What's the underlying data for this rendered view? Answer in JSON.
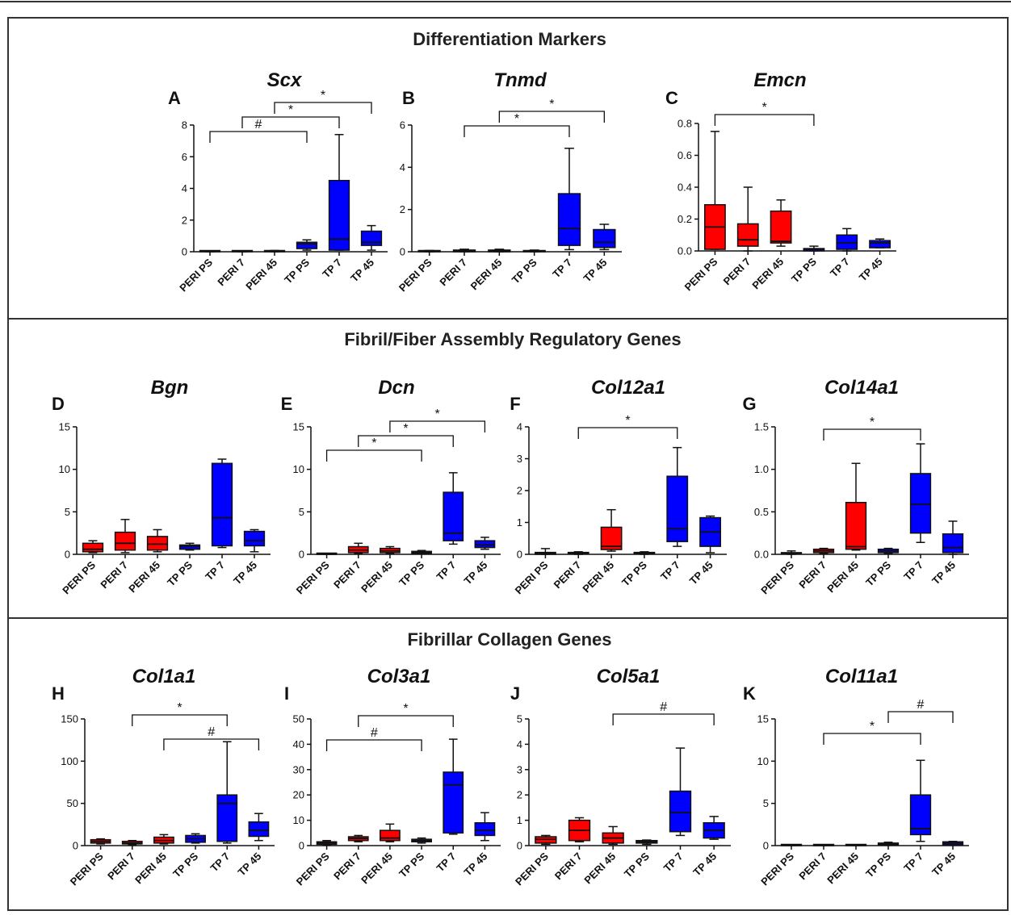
{
  "sections": [
    {
      "title": "Differentiation Markers"
    },
    {
      "title": "Fibril/Fiber Assembly Regulatory Genes"
    },
    {
      "title": "Fibrillar Collagen Genes"
    }
  ],
  "colors": {
    "peri": "#ff0000",
    "tp": "#0000ff",
    "frame": "#333333"
  },
  "chart_data": [
    {
      "type": "box",
      "letter": "A",
      "title": "Scx",
      "section": 0,
      "categories": [
        "PERI PS",
        "PERI 7",
        "PERI 45",
        "TP PS",
        "TP 7",
        "TP 45"
      ],
      "ylim": [
        0,
        8
      ],
      "yticks": [
        0,
        2,
        4,
        6,
        8
      ],
      "ytick_labels": [
        "0",
        "2",
        "4",
        "6",
        "8"
      ],
      "boxes": [
        {
          "min": 0.0,
          "q1": 0.0,
          "median": 0.02,
          "q3": 0.04,
          "max": 0.06
        },
        {
          "min": 0.0,
          "q1": 0.0,
          "median": 0.02,
          "q3": 0.04,
          "max": 0.06
        },
        {
          "min": 0.0,
          "q1": 0.0,
          "median": 0.02,
          "q3": 0.05,
          "max": 0.08
        },
        {
          "min": 0.1,
          "q1": 0.2,
          "median": 0.5,
          "q3": 0.6,
          "max": 0.75
        },
        {
          "min": 0.1,
          "q1": 0.1,
          "median": 0.8,
          "q3": 4.5,
          "max": 7.4
        },
        {
          "min": 0.1,
          "q1": 0.4,
          "median": 0.6,
          "q3": 1.3,
          "max": 1.65
        }
      ],
      "brackets": [
        {
          "from": 0,
          "to": 3,
          "label": "#",
          "level": 0
        },
        {
          "from": 1,
          "to": 4,
          "label": "*",
          "level": 1
        },
        {
          "from": 2,
          "to": 5,
          "label": "*",
          "level": 2
        }
      ]
    },
    {
      "type": "box",
      "letter": "B",
      "title": "Tnmd",
      "section": 0,
      "categories": [
        "PERI PS",
        "PERI 7",
        "PERI 45",
        "TP PS",
        "TP 7",
        "TP 45"
      ],
      "ylim": [
        0,
        6
      ],
      "yticks": [
        0,
        2,
        4,
        6
      ],
      "ytick_labels": [
        "0",
        "2",
        "4",
        "6"
      ],
      "boxes": [
        {
          "min": 0.0,
          "q1": 0.0,
          "median": 0.02,
          "q3": 0.04,
          "max": 0.06
        },
        {
          "min": 0.0,
          "q1": 0.0,
          "median": 0.03,
          "q3": 0.08,
          "max": 0.12
        },
        {
          "min": 0.0,
          "q1": 0.0,
          "median": 0.03,
          "q3": 0.08,
          "max": 0.12
        },
        {
          "min": 0.0,
          "q1": 0.0,
          "median": 0.02,
          "q3": 0.05,
          "max": 0.08
        },
        {
          "min": 0.1,
          "q1": 0.3,
          "median": 1.1,
          "q3": 2.75,
          "max": 4.9
        },
        {
          "min": 0.1,
          "q1": 0.2,
          "median": 0.45,
          "q3": 1.05,
          "max": 1.3
        }
      ],
      "brackets": [
        {
          "from": 1,
          "to": 4,
          "label": "*",
          "level": 0
        },
        {
          "from": 2,
          "to": 5,
          "label": "*",
          "level": 1
        }
      ]
    },
    {
      "type": "box",
      "letter": "C",
      "title": "Emcn",
      "section": 0,
      "categories": [
        "PERI PS",
        "PERI 7",
        "PERI 45",
        "TP PS",
        "TP 7",
        "TP 45"
      ],
      "ylim": [
        0,
        0.8
      ],
      "yticks": [
        0,
        0.2,
        0.4,
        0.6,
        0.8
      ],
      "ytick_labels": [
        "0.0",
        "0.2",
        "0.4",
        "0.6",
        "0.8"
      ],
      "boxes": [
        {
          "min": 0.01,
          "q1": 0.01,
          "median": 0.15,
          "q3": 0.29,
          "max": 0.75
        },
        {
          "min": 0.0,
          "q1": 0.03,
          "median": 0.07,
          "q3": 0.17,
          "max": 0.4
        },
        {
          "min": 0.03,
          "q1": 0.05,
          "median": 0.06,
          "q3": 0.25,
          "max": 0.32
        },
        {
          "min": 0.0,
          "q1": 0.0,
          "median": 0.01,
          "q3": 0.015,
          "max": 0.03
        },
        {
          "min": 0.0,
          "q1": 0.01,
          "median": 0.05,
          "q3": 0.1,
          "max": 0.14
        },
        {
          "min": 0.02,
          "q1": 0.02,
          "median": 0.05,
          "q3": 0.065,
          "max": 0.075
        }
      ],
      "brackets": [
        {
          "from": 0,
          "to": 3,
          "label": "*",
          "level": 0
        }
      ]
    },
    {
      "type": "box",
      "letter": "D",
      "title": "Bgn",
      "section": 1,
      "categories": [
        "PERI PS",
        "PERI 7",
        "PERI 45",
        "TP PS",
        "TP 7",
        "TP 45"
      ],
      "ylim": [
        0,
        15
      ],
      "yticks": [
        0,
        5,
        10,
        15
      ],
      "ytick_labels": [
        "0",
        "5",
        "10",
        "15"
      ],
      "boxes": [
        {
          "min": 0.2,
          "q1": 0.3,
          "median": 0.6,
          "q3": 1.3,
          "max": 1.6
        },
        {
          "min": 0.2,
          "q1": 0.5,
          "median": 1.3,
          "q3": 2.6,
          "max": 4.1
        },
        {
          "min": 0.3,
          "q1": 0.5,
          "median": 1.2,
          "q3": 2.1,
          "max": 2.9
        },
        {
          "min": 0.5,
          "q1": 0.6,
          "median": 0.9,
          "q3": 1.1,
          "max": 1.3
        },
        {
          "min": 0.8,
          "q1": 1.0,
          "median": 4.3,
          "q3": 10.7,
          "max": 11.2
        },
        {
          "min": 0.3,
          "q1": 1.0,
          "median": 1.6,
          "q3": 2.7,
          "max": 2.9
        }
      ],
      "brackets": []
    },
    {
      "type": "box",
      "letter": "E",
      "title": "Dcn",
      "section": 1,
      "categories": [
        "PERI PS",
        "PERI 7",
        "PERI 45",
        "TP PS",
        "TP 7",
        "TP 45"
      ],
      "ylim": [
        0,
        15
      ],
      "yticks": [
        0,
        5,
        10,
        15
      ],
      "ytick_labels": [
        "0",
        "5",
        "10",
        "15"
      ],
      "boxes": [
        {
          "min": 0.0,
          "q1": 0.0,
          "median": 0.02,
          "q3": 0.05,
          "max": 0.08
        },
        {
          "min": 0.1,
          "q1": 0.2,
          "median": 0.5,
          "q3": 0.9,
          "max": 1.3
        },
        {
          "min": 0.1,
          "q1": 0.2,
          "median": 0.4,
          "q3": 0.7,
          "max": 0.9
        },
        {
          "min": 0.05,
          "q1": 0.1,
          "median": 0.2,
          "q3": 0.35,
          "max": 0.45
        },
        {
          "min": 1.2,
          "q1": 1.6,
          "median": 2.5,
          "q3": 7.3,
          "max": 9.6
        },
        {
          "min": 0.6,
          "q1": 0.8,
          "median": 1.1,
          "q3": 1.6,
          "max": 2.0
        }
      ],
      "brackets": [
        {
          "from": 0,
          "to": 3,
          "label": "*",
          "level": 0
        },
        {
          "from": 1,
          "to": 4,
          "label": "*",
          "level": 1
        },
        {
          "from": 2,
          "to": 5,
          "label": "*",
          "level": 2
        }
      ]
    },
    {
      "type": "box",
      "letter": "F",
      "title": "Col12a1",
      "section": 1,
      "categories": [
        "PERI PS",
        "PERI 7",
        "PERI 45",
        "TP PS",
        "TP 7",
        "TP 45"
      ],
      "ylim": [
        0,
        4
      ],
      "yticks": [
        0,
        1,
        2,
        3,
        4
      ],
      "ytick_labels": [
        "0",
        "1",
        "2",
        "3",
        "4"
      ],
      "boxes": [
        {
          "min": 0.0,
          "q1": 0.0,
          "median": 0.03,
          "q3": 0.06,
          "max": 0.18
        },
        {
          "min": 0.0,
          "q1": 0.01,
          "median": 0.03,
          "q3": 0.06,
          "max": 0.08
        },
        {
          "min": 0.1,
          "q1": 0.15,
          "median": 0.25,
          "q3": 0.85,
          "max": 1.4
        },
        {
          "min": 0.0,
          "q1": 0.01,
          "median": 0.03,
          "q3": 0.06,
          "max": 0.08
        },
        {
          "min": 0.25,
          "q1": 0.4,
          "median": 0.8,
          "q3": 2.45,
          "max": 3.35
        },
        {
          "min": 0.05,
          "q1": 0.25,
          "median": 0.7,
          "q3": 1.15,
          "max": 1.2
        }
      ],
      "brackets": [
        {
          "from": 1,
          "to": 4,
          "label": "*",
          "level": 0
        }
      ]
    },
    {
      "type": "box",
      "letter": "G",
      "title": "Col14a1",
      "section": 1,
      "categories": [
        "PERI PS",
        "PERI 7",
        "PERI 45",
        "TP PS",
        "TP 7",
        "TP 45"
      ],
      "ylim": [
        0,
        1.5
      ],
      "yticks": [
        0,
        0.5,
        1,
        1.5
      ],
      "ytick_labels": [
        "0.0",
        "0.5",
        "1.0",
        "1.5"
      ],
      "boxes": [
        {
          "min": 0.0,
          "q1": 0.005,
          "median": 0.01,
          "q3": 0.02,
          "max": 0.04
        },
        {
          "min": 0.01,
          "q1": 0.02,
          "median": 0.04,
          "q3": 0.06,
          "max": 0.07
        },
        {
          "min": 0.05,
          "q1": 0.06,
          "median": 0.09,
          "q3": 0.61,
          "max": 1.07
        },
        {
          "min": 0.01,
          "q1": 0.02,
          "median": 0.04,
          "q3": 0.06,
          "max": 0.07
        },
        {
          "min": 0.14,
          "q1": 0.25,
          "median": 0.59,
          "q3": 0.95,
          "max": 1.3
        },
        {
          "min": 0.0,
          "q1": 0.02,
          "median": 0.08,
          "q3": 0.24,
          "max": 0.39
        }
      ],
      "brackets": [
        {
          "from": 1,
          "to": 4,
          "label": "*",
          "level": 0
        }
      ]
    },
    {
      "type": "box",
      "letter": "H",
      "title": "Col1a1",
      "section": 2,
      "categories": [
        "PERI PS",
        "PERI 7",
        "PERI 45",
        "TP PS",
        "TP 7",
        "TP 45"
      ],
      "ylim": [
        0,
        150
      ],
      "yticks": [
        0,
        50,
        100,
        150
      ],
      "ytick_labels": [
        "0",
        "50",
        "100",
        "150"
      ],
      "boxes": [
        {
          "min": 2,
          "q1": 3,
          "median": 5,
          "q3": 7,
          "max": 8
        },
        {
          "min": 1,
          "q1": 2,
          "median": 3,
          "q3": 5,
          "max": 6
        },
        {
          "min": 2,
          "q1": 3,
          "median": 6,
          "q3": 10,
          "max": 13
        },
        {
          "min": 3,
          "q1": 4,
          "median": 8,
          "q3": 12,
          "max": 14
        },
        {
          "min": 3,
          "q1": 5,
          "median": 50,
          "q3": 60,
          "max": 123
        },
        {
          "min": 6,
          "q1": 11,
          "median": 18,
          "q3": 28,
          "max": 38
        }
      ],
      "brackets": [
        {
          "from": 2,
          "to": 5,
          "label": "#",
          "level": 0
        },
        {
          "from": 1,
          "to": 4,
          "label": "*",
          "level": 1
        }
      ]
    },
    {
      "type": "box",
      "letter": "I",
      "title": "Col3a1",
      "section": 2,
      "categories": [
        "PERI PS",
        "PERI 7",
        "PERI 45",
        "TP PS",
        "TP 7",
        "TP 45"
      ],
      "ylim": [
        0,
        50
      ],
      "yticks": [
        0,
        10,
        20,
        30,
        40,
        50
      ],
      "ytick_labels": [
        "0",
        "10",
        "20",
        "30",
        "40",
        "50"
      ],
      "boxes": [
        {
          "min": 0.3,
          "q1": 0.5,
          "median": 1.0,
          "q3": 1.5,
          "max": 2.0
        },
        {
          "min": 1.5,
          "q1": 2.0,
          "median": 2.8,
          "q3": 3.5,
          "max": 4.0
        },
        {
          "min": 1.5,
          "q1": 2.0,
          "median": 3.0,
          "q3": 6.0,
          "max": 8.5
        },
        {
          "min": 1.0,
          "q1": 1.5,
          "median": 2.0,
          "q3": 2.5,
          "max": 3.0
        },
        {
          "min": 4.5,
          "q1": 5.0,
          "median": 24,
          "q3": 29,
          "max": 42
        },
        {
          "min": 2.0,
          "q1": 4.0,
          "median": 6.0,
          "q3": 9.0,
          "max": 13
        }
      ],
      "brackets": [
        {
          "from": 0,
          "to": 3,
          "label": "#",
          "level": 0
        },
        {
          "from": 1,
          "to": 4,
          "label": "*",
          "level": 1
        }
      ]
    },
    {
      "type": "box",
      "letter": "J",
      "title": "Col5a1",
      "section": 2,
      "categories": [
        "PERI PS",
        "PERI 7",
        "PERI 45",
        "TP PS",
        "TP 7",
        "TP 45"
      ],
      "ylim": [
        0,
        5
      ],
      "yticks": [
        0,
        1,
        2,
        3,
        4,
        5
      ],
      "ytick_labels": [
        "0",
        "1",
        "2",
        "3",
        "4",
        "5"
      ],
      "boxes": [
        {
          "min": 0.05,
          "q1": 0.1,
          "median": 0.25,
          "q3": 0.35,
          "max": 0.4
        },
        {
          "min": 0.15,
          "q1": 0.2,
          "median": 0.6,
          "q3": 1.0,
          "max": 1.1
        },
        {
          "min": 0.05,
          "q1": 0.1,
          "median": 0.3,
          "q3": 0.5,
          "max": 0.75
        },
        {
          "min": 0.05,
          "q1": 0.1,
          "median": 0.15,
          "q3": 0.2,
          "max": 0.22
        },
        {
          "min": 0.4,
          "q1": 0.55,
          "median": 1.3,
          "q3": 2.15,
          "max": 3.85
        },
        {
          "min": 0.25,
          "q1": 0.3,
          "median": 0.6,
          "q3": 0.9,
          "max": 1.15
        }
      ],
      "brackets": [
        {
          "from": 2,
          "to": 5,
          "label": "#",
          "level": 0
        }
      ]
    },
    {
      "type": "box",
      "letter": "K",
      "title": "Col11a1",
      "section": 2,
      "categories": [
        "PERI PS",
        "PERI 7",
        "PERI 45",
        "TP PS",
        "TP 7",
        "TP 45"
      ],
      "ylim": [
        0,
        15
      ],
      "yticks": [
        0,
        5,
        10,
        15
      ],
      "ytick_labels": [
        "0",
        "5",
        "10",
        "15"
      ],
      "boxes": [
        {
          "min": 0.0,
          "q1": 0.0,
          "median": 0.03,
          "q3": 0.06,
          "max": 0.1
        },
        {
          "min": 0.0,
          "q1": 0.0,
          "median": 0.01,
          "q3": 0.02,
          "max": 0.03
        },
        {
          "min": 0.0,
          "q1": 0.0,
          "median": 0.03,
          "q3": 0.06,
          "max": 0.1
        },
        {
          "min": 0.05,
          "q1": 0.1,
          "median": 0.2,
          "q3": 0.3,
          "max": 0.4
        },
        {
          "min": 0.5,
          "q1": 1.3,
          "median": 2.0,
          "q3": 6.0,
          "max": 10.1
        },
        {
          "min": 0.05,
          "q1": 0.1,
          "median": 0.3,
          "q3": 0.45,
          "max": 0.5
        }
      ],
      "brackets": [
        {
          "from": 1,
          "to": 4,
          "label": "*",
          "level": 0
        },
        {
          "from": 3,
          "to": 5,
          "label": "#",
          "level": 1
        }
      ]
    }
  ]
}
